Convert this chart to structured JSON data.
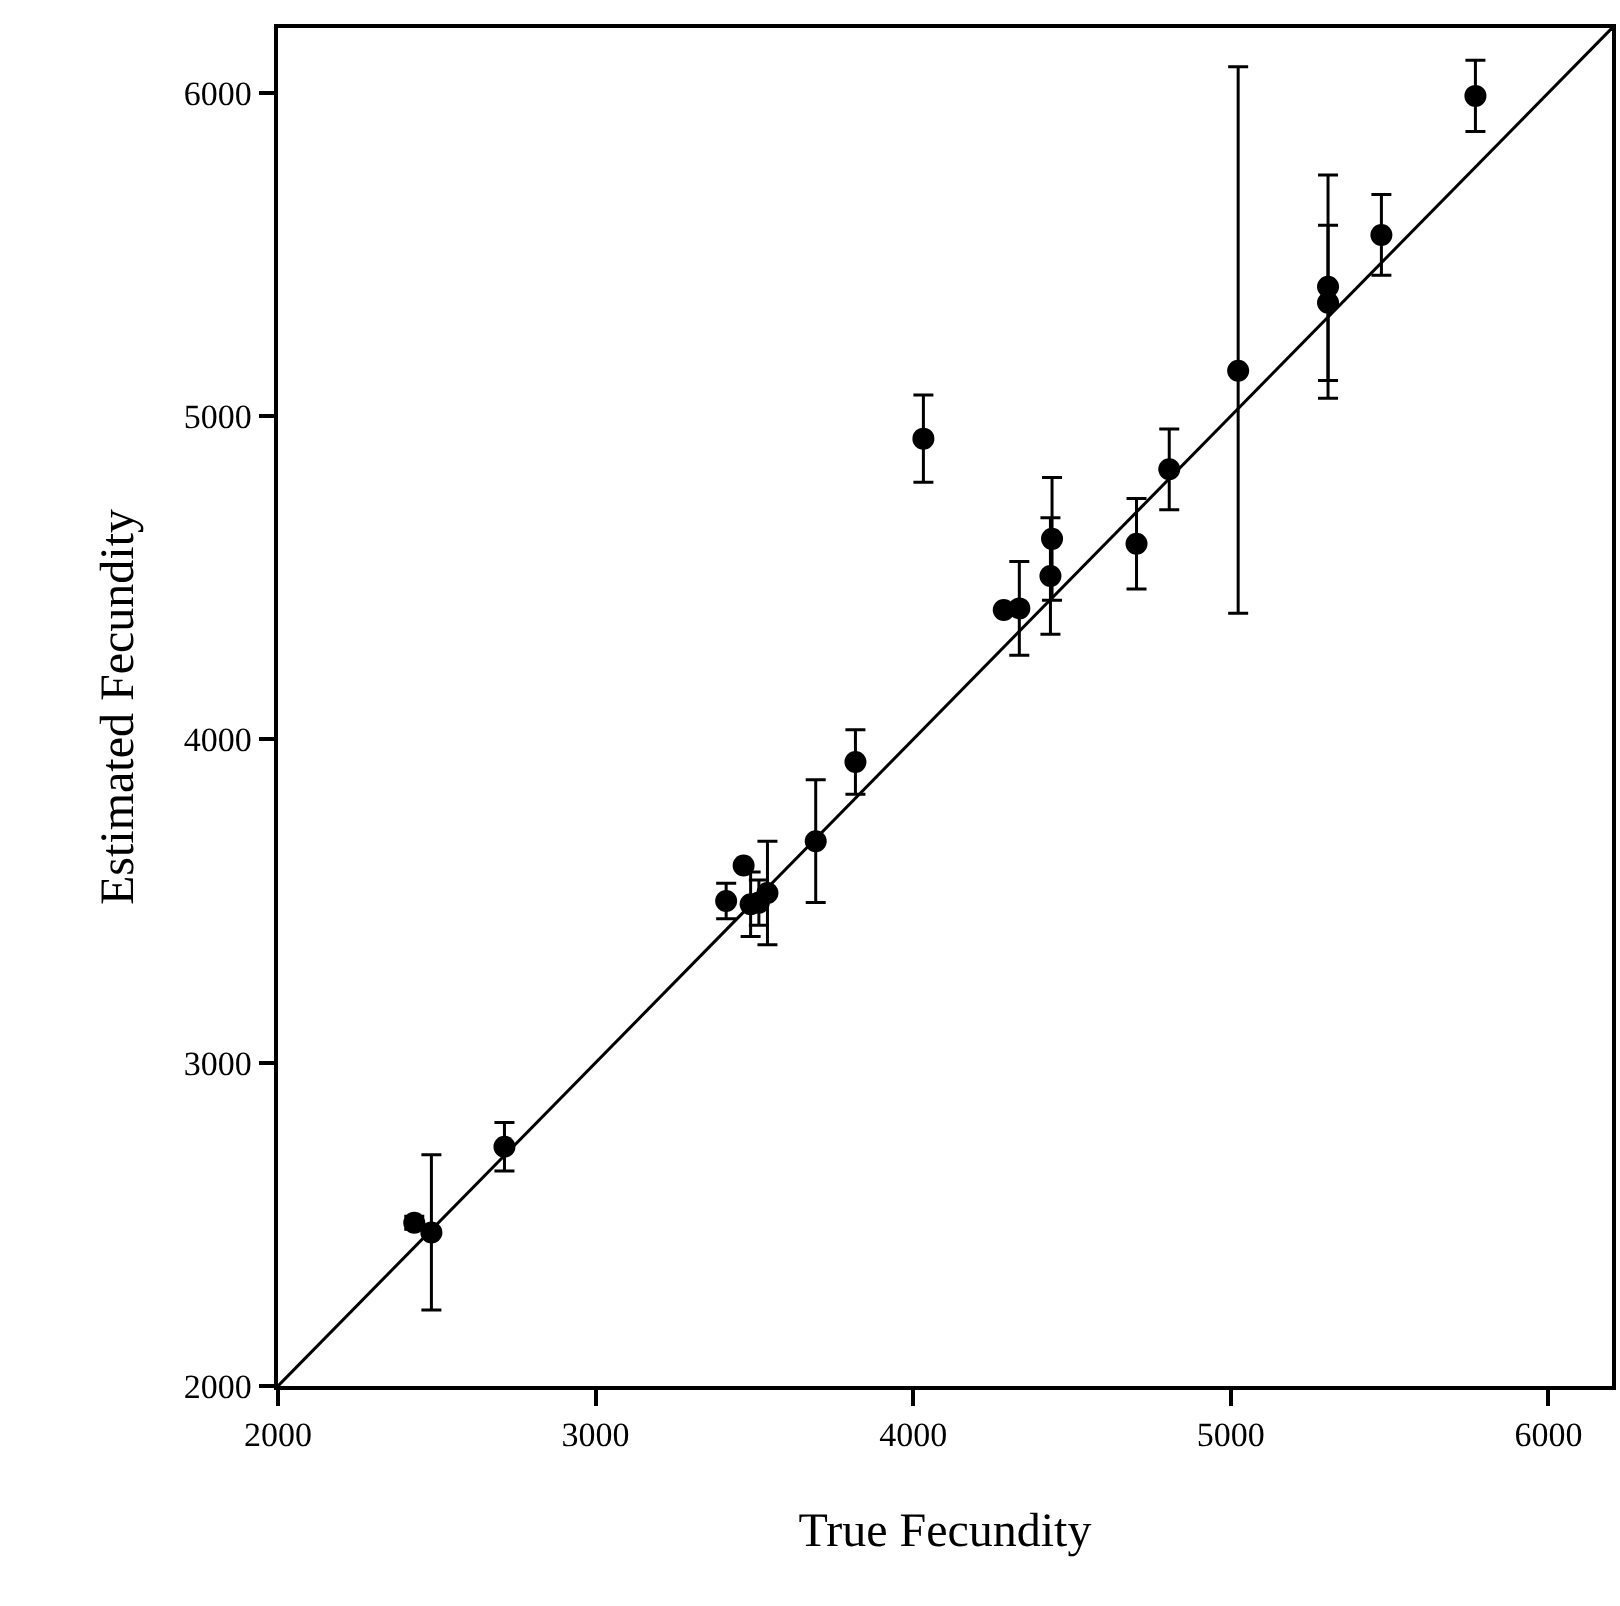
{
  "chart_data": {
    "type": "scatter",
    "xlabel": "True Fecundity",
    "ylabel": "Estimated Fecundity",
    "xlim": [
      2000,
      6200
    ],
    "xticks": [
      2000,
      3000,
      4000,
      5000,
      6000
    ],
    "ylim": [
      2000,
      6200
    ],
    "yticks": [
      2000,
      3000,
      4000,
      5000,
      6000
    ],
    "series": [
      {
        "marker": "circle",
        "color": "#000000",
        "x": [
          5770,
          4032,
          5474,
          5306,
          5306,
          5023,
          4806,
          4703,
          4437,
          4432,
          4334,
          4285,
          3818,
          3693,
          3466,
          3411,
          3488,
          3514,
          3541,
          2429,
          2483,
          2713
        ],
        "values": [
          5990,
          4930,
          5560,
          5400,
          5350,
          5140,
          4835,
          4605,
          4620,
          4505,
          4405,
          4400,
          3930,
          3685,
          3610,
          3500,
          3490,
          3495,
          3525,
          2505,
          2475,
          2740
        ],
        "errors": [
          110,
          135,
          125,
          345,
          240,
          [
            4390,
            6080
          ],
          125,
          140,
          190,
          180,
          145,
          null,
          100,
          190,
          null,
          55,
          100,
          70,
          160,
          20,
          240,
          75
        ]
      },
      {
        "type": "line",
        "color": "#000000",
        "line_style": "solid",
        "x": [
          2000,
          6200
        ],
        "values": [
          2000,
          6200
        ]
      }
    ]
  }
}
